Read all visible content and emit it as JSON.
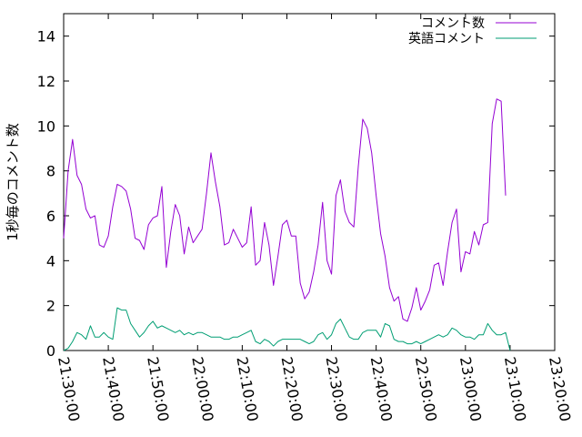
{
  "chart_data": {
    "type": "line",
    "title": "",
    "xlabel": "",
    "ylabel": "1秒毎のコメント数",
    "xlim": [
      "21:30:00",
      "23:20:00"
    ],
    "ylim": [
      0,
      15
    ],
    "yticks": [
      "0",
      "2",
      "4",
      "6",
      "8",
      "10",
      "12",
      "14"
    ],
    "xticks": [
      "21:30:00",
      "21:40:00",
      "21:50:00",
      "22:00:00",
      "22:10:00",
      "22:20:00",
      "22:30:00",
      "22:40:00",
      "22:50:00",
      "23:00:00",
      "23:10:00",
      "23:20:00"
    ],
    "grid": false,
    "legend": "top-right",
    "x_start": "21:30:00",
    "x_step_seconds": 60,
    "series": [
      {
        "name": "コメント数",
        "color": "#9400d3",
        "values": [
          5.0,
          8.0,
          9.4,
          7.8,
          7.4,
          6.3,
          5.9,
          6.0,
          4.7,
          4.6,
          5.1,
          6.4,
          7.4,
          7.3,
          7.1,
          6.3,
          5.0,
          4.9,
          4.5,
          5.6,
          5.9,
          6.0,
          7.3,
          3.7,
          5.3,
          6.5,
          6.0,
          4.3,
          5.5,
          4.8,
          5.1,
          5.4,
          7.0,
          8.8,
          7.5,
          6.4,
          4.7,
          4.8,
          5.4,
          5.0,
          4.6,
          4.8,
          6.4,
          3.8,
          4.0,
          5.7,
          4.7,
          2.9,
          4.2,
          5.6,
          5.8,
          5.1,
          5.1,
          3.0,
          2.3,
          2.6,
          3.5,
          4.7,
          6.6,
          4.0,
          3.4,
          6.9,
          7.6,
          6.2,
          5.7,
          5.5,
          8.2,
          10.3,
          9.9,
          8.8,
          6.9,
          5.2,
          4.2,
          2.8,
          2.2,
          2.4,
          1.4,
          1.3,
          1.9,
          2.8,
          1.8,
          2.2,
          2.7,
          3.8,
          3.9,
          2.9,
          4.4,
          5.7,
          6.3,
          3.5,
          4.4,
          4.3,
          5.3,
          4.7,
          5.6,
          5.7,
          10.1,
          11.2,
          11.1,
          6.9
        ]
      },
      {
        "name": "英語コメント",
        "color": "#009e73",
        "values": [
          0.0,
          0.1,
          0.4,
          0.8,
          0.7,
          0.5,
          1.1,
          0.6,
          0.6,
          0.8,
          0.6,
          0.5,
          1.9,
          1.8,
          1.8,
          1.2,
          0.9,
          0.6,
          0.8,
          1.1,
          1.3,
          1.0,
          1.1,
          1.0,
          0.9,
          0.8,
          0.9,
          0.7,
          0.8,
          0.7,
          0.8,
          0.8,
          0.7,
          0.6,
          0.6,
          0.6,
          0.5,
          0.5,
          0.6,
          0.6,
          0.7,
          0.8,
          0.9,
          0.4,
          0.3,
          0.5,
          0.4,
          0.2,
          0.4,
          0.5,
          0.5,
          0.5,
          0.5,
          0.5,
          0.4,
          0.3,
          0.4,
          0.7,
          0.8,
          0.5,
          0.7,
          1.2,
          1.4,
          1.0,
          0.6,
          0.5,
          0.5,
          0.8,
          0.9,
          0.9,
          0.9,
          0.6,
          1.2,
          1.1,
          0.5,
          0.4,
          0.4,
          0.3,
          0.3,
          0.4,
          0.3,
          0.4,
          0.5,
          0.6,
          0.7,
          0.6,
          0.7,
          1.0,
          0.9,
          0.7,
          0.6,
          0.6,
          0.5,
          0.7,
          0.7,
          1.2,
          0.9,
          0.7,
          0.7,
          0.8,
          0.0
        ]
      }
    ]
  }
}
